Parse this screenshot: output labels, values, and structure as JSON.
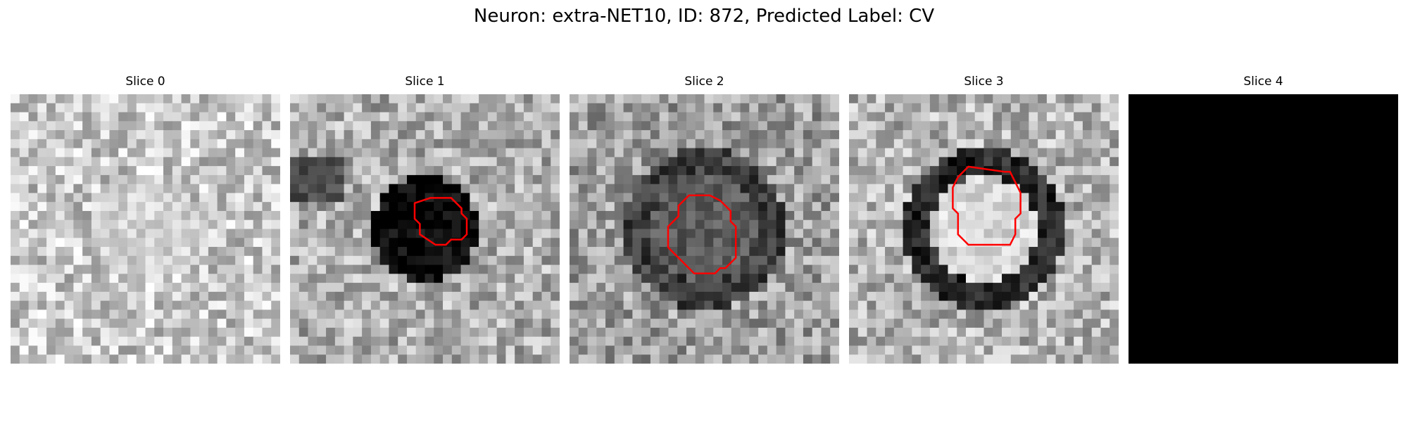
{
  "figure": {
    "title": "Neuron: extra-NET10, ID: 872, Predicted Label: CV"
  },
  "panels": [
    {
      "title": "Slice 0",
      "seed": 11,
      "base": 0.78,
      "ring": 0.0,
      "center": 0.82,
      "blank": false,
      "contour": false
    },
    {
      "title": "Slice 1",
      "seed": 23,
      "base": 0.68,
      "ring": 0.0,
      "center": 0.03,
      "blank": false,
      "contour": true
    },
    {
      "title": "Slice 2",
      "seed": 37,
      "base": 0.62,
      "ring": 0.25,
      "center": 0.35,
      "blank": false,
      "contour": true
    },
    {
      "title": "Slice 3",
      "seed": 53,
      "base": 0.7,
      "ring": 0.15,
      "center": 0.85,
      "blank": false,
      "contour": true
    },
    {
      "title": "Slice 4",
      "seed": 71,
      "base": 0.0,
      "ring": 0.0,
      "center": 0.0,
      "blank": true,
      "contour": false
    }
  ],
  "colors": {
    "contour": "#ff0000",
    "blank": "#000000"
  }
}
